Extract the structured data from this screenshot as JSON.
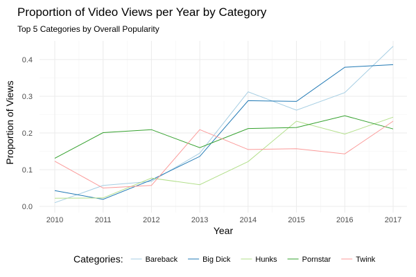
{
  "chart_data": {
    "type": "line",
    "title": "Proportion of Video Views per Year by Category",
    "subtitle": "Top 5 Categories by Overall Popularity",
    "xlabel": "Year",
    "ylabel": "Proportion of Views",
    "x": [
      2010,
      2011,
      2012,
      2013,
      2014,
      2015,
      2016,
      2017
    ],
    "xlim": [
      2010,
      2017
    ],
    "ylim": [
      -0.01,
      0.445
    ],
    "yticks": [
      0.0,
      0.1,
      0.2,
      0.3,
      0.4
    ],
    "ytick_labels": [
      "0.0",
      "0.1",
      "0.2",
      "0.3",
      "0.4"
    ],
    "xtick_labels": [
      "2010",
      "2011",
      "2012",
      "2013",
      "2014",
      "2015",
      "2016",
      "2017"
    ],
    "grid": true,
    "legend": {
      "title": "Categories:",
      "position": "bottom"
    },
    "series": [
      {
        "name": "Bareback",
        "color": "#a6cee3",
        "values": [
          0.01,
          0.057,
          0.068,
          0.145,
          0.312,
          0.262,
          0.31,
          0.436
        ]
      },
      {
        "name": "Big Dick",
        "color": "#1f78b4",
        "values": [
          0.043,
          0.019,
          0.072,
          0.136,
          0.288,
          0.286,
          0.379,
          0.386
        ]
      },
      {
        "name": "Hunks",
        "color": "#b2df8a",
        "values": [
          0.022,
          0.023,
          0.077,
          0.059,
          0.122,
          0.232,
          0.197,
          0.243
        ]
      },
      {
        "name": "Pornstar",
        "color": "#33a02c",
        "values": [
          0.131,
          0.201,
          0.209,
          0.16,
          0.212,
          0.215,
          0.247,
          0.211
        ]
      },
      {
        "name": "Twink",
        "color": "#fb9a99",
        "values": [
          0.123,
          0.05,
          0.057,
          0.209,
          0.155,
          0.157,
          0.143,
          0.232
        ]
      }
    ]
  }
}
